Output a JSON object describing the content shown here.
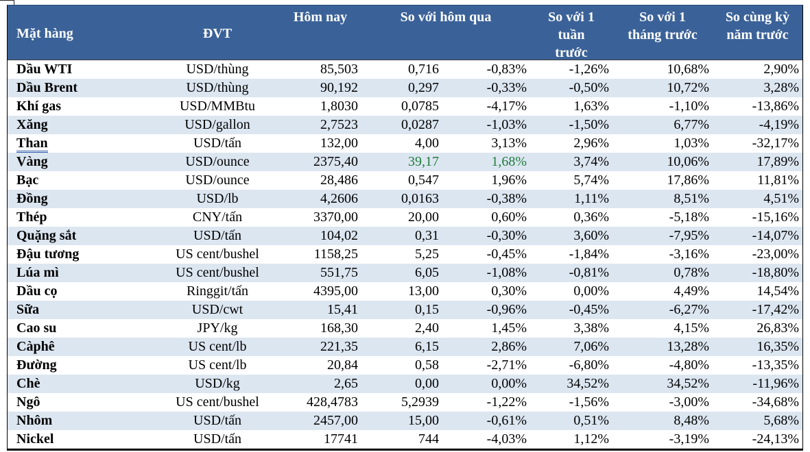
{
  "colors": {
    "header_bg": "#3B6298",
    "stripe_row": "#DCE6F1",
    "positive_green": "#1E7C3A",
    "border": "#000000",
    "header_text": "#FFFFFF"
  },
  "chart_data": {
    "type": "table",
    "columns": {
      "item": "Mặt hàng",
      "unit": "ĐVT",
      "today": "Hôm nay",
      "vs_yesterday": "So với hôm qua",
      "vs_week": "So với 1\ntuần\ntrước",
      "vs_month": "So với 1\ntháng trước",
      "vs_year": "So cùng kỳ\nnăm trước"
    },
    "rows": [
      {
        "item": "Dầu WTI",
        "unit": "USD/thùng",
        "today": "85,503",
        "change": "0,716",
        "pct_day": "-0,83%",
        "pct_week": "-1,26%",
        "pct_month": "10,68%",
        "pct_year": "2,90%"
      },
      {
        "item": "Dầu Brent",
        "unit": "USD/thùng",
        "today": "90,192",
        "change": "0,297",
        "pct_day": "-0,33%",
        "pct_week": "-0,50%",
        "pct_month": "10,72%",
        "pct_year": "3,28%"
      },
      {
        "item": "Khí gas",
        "unit": "USD/MMBtu",
        "today": "1,8030",
        "change": "0,0785",
        "pct_day": "-4,17%",
        "pct_week": "1,63%",
        "pct_month": "-1,10%",
        "pct_year": "-13,86%"
      },
      {
        "item": "Xăng",
        "unit": "USD/gallon",
        "today": "2,7523",
        "change": "0,0287",
        "pct_day": "-1,03%",
        "pct_week": "-1,50%",
        "pct_month": "6,77%",
        "pct_year": "-4,19%"
      },
      {
        "item": "Than",
        "unit": "USD/tấn",
        "today": "132,00",
        "change": "4,00",
        "pct_day": "3,13%",
        "pct_week": "2,96%",
        "pct_month": "1,03%",
        "pct_year": "-32,17%",
        "item_underline": true
      },
      {
        "item": "Vàng",
        "unit": "USD/ounce",
        "today": "2375,40",
        "change": "39,17",
        "pct_day": "1,68%",
        "pct_week": "3,74%",
        "pct_month": "10,06%",
        "pct_year": "17,89%",
        "change_highlight": "green"
      },
      {
        "item": "Bạc",
        "unit": "USD/ounce",
        "today": "28,486",
        "change": "0,547",
        "pct_day": "1,96%",
        "pct_week": "5,74%",
        "pct_month": "17,86%",
        "pct_year": "11,81%"
      },
      {
        "item": "Đồng",
        "unit": "USD/lb",
        "today": "4,2606",
        "change": "0,0163",
        "pct_day": "-0,38%",
        "pct_week": "1,11%",
        "pct_month": "8,51%",
        "pct_year": "4,51%"
      },
      {
        "item": "Thép",
        "unit": "CNY/tấn",
        "today": "3370,00",
        "change": "20,00",
        "pct_day": "0,60%",
        "pct_week": "0,36%",
        "pct_month": "-5,18%",
        "pct_year": "-15,16%"
      },
      {
        "item": "Quặng sắt",
        "unit": "USD/tấn",
        "today": "104,02",
        "change": "0,31",
        "pct_day": "-0,30%",
        "pct_week": "3,60%",
        "pct_month": "-7,95%",
        "pct_year": "-14,07%"
      },
      {
        "item": "Đậu tương",
        "unit": "US cent/bushel",
        "today": "1158,25",
        "change": "5,25",
        "pct_day": "-0,45%",
        "pct_week": "-1,84%",
        "pct_month": "-3,16%",
        "pct_year": "-23,00%"
      },
      {
        "item": "Lúa mì",
        "unit": "US cent/bushel",
        "today": "551,75",
        "change": "6,05",
        "pct_day": "-1,08%",
        "pct_week": "-0,81%",
        "pct_month": "0,78%",
        "pct_year": "-18,80%"
      },
      {
        "item": "Dầu cọ",
        "unit": "Ringgit/tấn",
        "today": "4395,00",
        "change": "13,00",
        "pct_day": "0,30%",
        "pct_week": "0,00%",
        "pct_month": "4,49%",
        "pct_year": "14,54%"
      },
      {
        "item": "Sữa",
        "unit": "USD/cwt",
        "today": "15,41",
        "change": "0,15",
        "pct_day": "-0,96%",
        "pct_week": "-0,45%",
        "pct_month": "-6,27%",
        "pct_year": "-17,42%"
      },
      {
        "item": "Cao su",
        "unit": "JPY/kg",
        "today": "168,30",
        "change": "2,40",
        "pct_day": "1,45%",
        "pct_week": "3,38%",
        "pct_month": "4,15%",
        "pct_year": "26,83%"
      },
      {
        "item": "Càphê",
        "unit": "US cent/lb",
        "today": "221,35",
        "change": "6,15",
        "pct_day": "2,86%",
        "pct_week": "7,06%",
        "pct_month": "13,28%",
        "pct_year": "16,35%"
      },
      {
        "item": "Đường",
        "unit": "US cent/lb",
        "today": "20,84",
        "change": "0,58",
        "pct_day": "-2,71%",
        "pct_week": "-6,80%",
        "pct_month": "-4,80%",
        "pct_year": "-13,35%"
      },
      {
        "item": "Chè",
        "unit": "USD/kg",
        "today": "2,65",
        "change": "0,00",
        "pct_day": "0,00%",
        "pct_week": "34,52%",
        "pct_month": "34,52%",
        "pct_year": "-11,96%"
      },
      {
        "item": "Ngô",
        "unit": "US cent/bushel",
        "today": "428,4783",
        "change": "5,2939",
        "pct_day": "-1,22%",
        "pct_week": "-1,56%",
        "pct_month": "-3,00%",
        "pct_year": "-34,68%"
      },
      {
        "item": "Nhôm",
        "unit": "USD/tấn",
        "today": "2457,00",
        "change": "15,00",
        "pct_day": "-0,61%",
        "pct_week": "0,51%",
        "pct_month": "8,48%",
        "pct_year": "5,68%"
      },
      {
        "item": "Nickel",
        "unit": "USD/tấn",
        "today": "17741",
        "change": "744",
        "pct_day": "-4,03%",
        "pct_week": "1,12%",
        "pct_month": "-3,19%",
        "pct_year": "-24,13%"
      }
    ]
  }
}
